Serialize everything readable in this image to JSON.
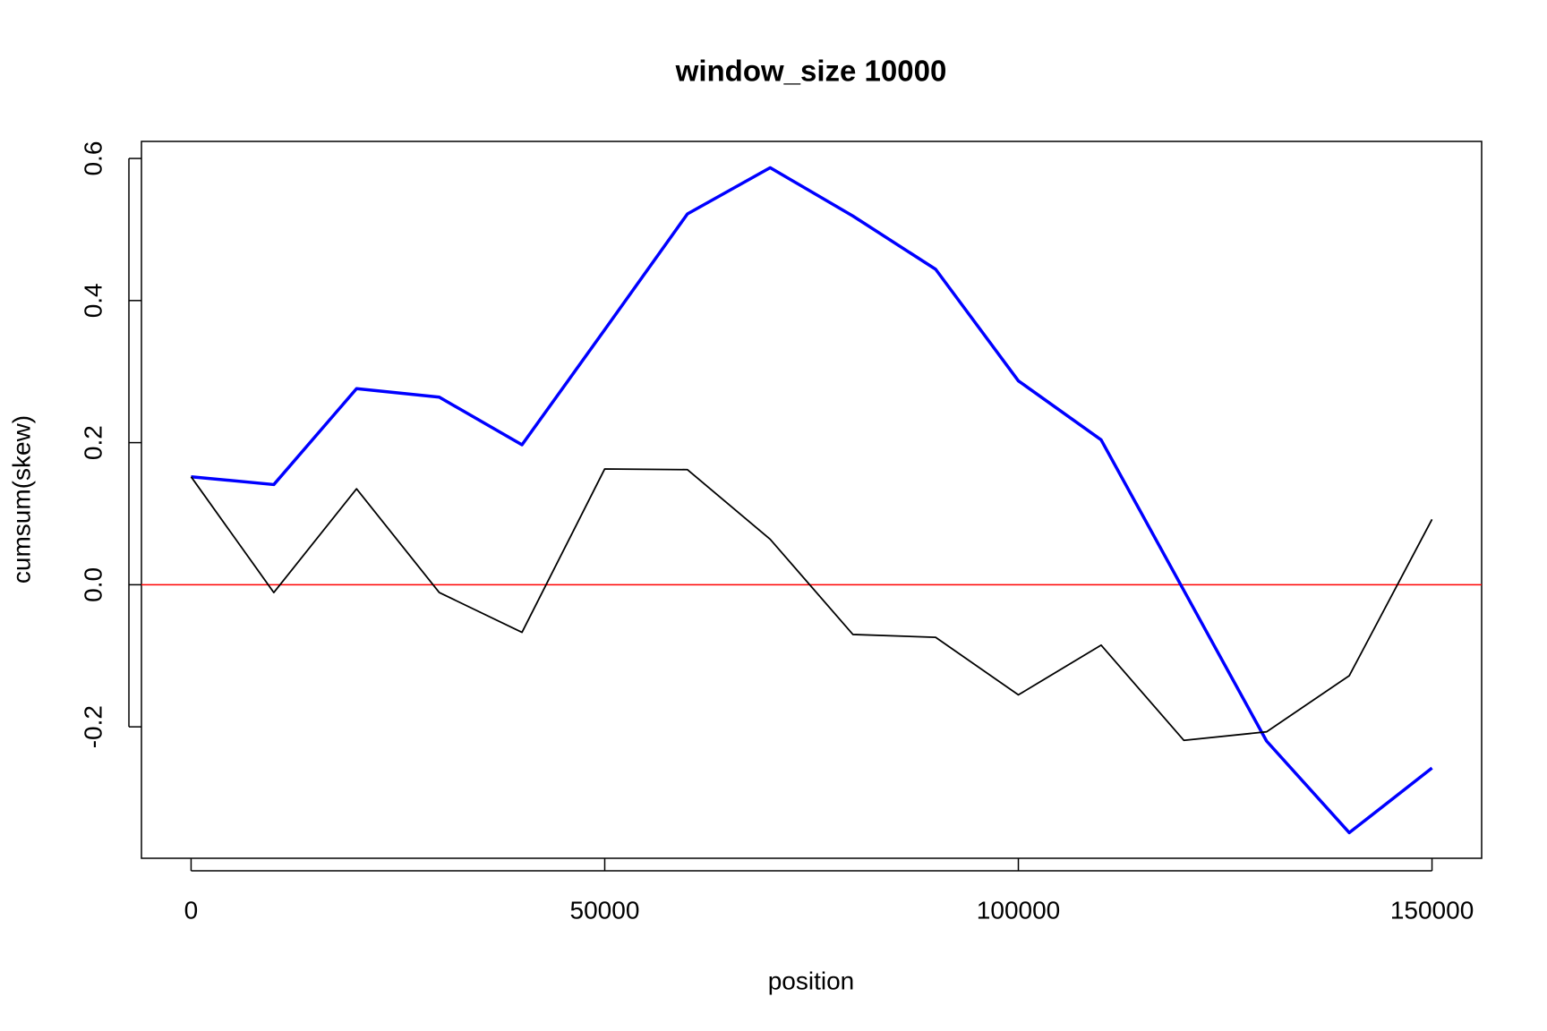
{
  "chart_data": {
    "type": "line",
    "title": "window_size 10000",
    "x_label": "position",
    "y_label": "cumsum(skew)",
    "x": [
      0,
      10000,
      20000,
      30000,
      40000,
      50000,
      60000,
      70000,
      80000,
      90000,
      100000,
      110000,
      120000,
      130000,
      140000,
      150000
    ],
    "series": [
      {
        "color": "#0000ff",
        "values": [
          0.152,
          0.141,
          0.276,
          0.264,
          0.197,
          0.359,
          0.522,
          0.587,
          0.519,
          0.444,
          0.287,
          0.204,
          -0.008,
          -0.22,
          -0.349,
          -0.258
        ]
      },
      {
        "color": "#000000",
        "values": [
          0.152,
          -0.011,
          0.135,
          -0.011,
          -0.067,
          0.163,
          0.162,
          0.064,
          -0.07,
          -0.074,
          -0.155,
          -0.085,
          -0.219,
          -0.207,
          -0.128,
          0.092
        ]
      }
    ],
    "reference_line": {
      "value": 0,
      "color": "#ff0000"
    },
    "xlim": [
      -6000,
      156000
    ],
    "ylim": [
      -0.385,
      0.624
    ],
    "xticks": [
      0,
      50000,
      100000,
      150000
    ],
    "yticks": [
      -0.2,
      {
        "value": 0,
        "label": "0.0"
      },
      0.2,
      0.4,
      0.6
    ]
  }
}
